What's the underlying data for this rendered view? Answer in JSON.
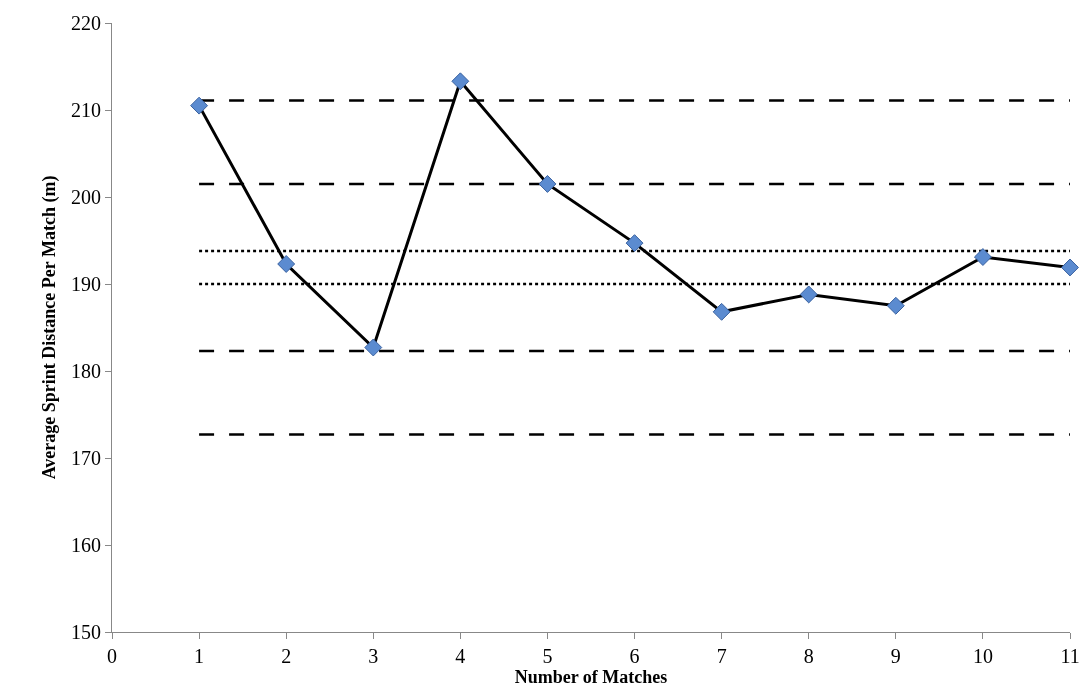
{
  "chart_data": {
    "type": "line",
    "xlabel": "Number of Matches",
    "ylabel": "Average Sprint Distance Per Match (m)",
    "x": [
      1,
      2,
      3,
      4,
      5,
      6,
      7,
      8,
      9,
      10,
      11
    ],
    "series": [
      {
        "color": "#000000",
        "values": [
          210.5,
          192.3,
          182.7,
          213.3,
          201.5,
          194.7,
          186.8,
          188.8,
          187.5,
          193.1,
          191.9
        ]
      }
    ],
    "xlim": [
      0,
      11
    ],
    "xticks": [
      0,
      1,
      2,
      3,
      4,
      5,
      6,
      7,
      8,
      9,
      10,
      11
    ],
    "ylim": [
      150,
      220
    ],
    "yticks": [
      150,
      160,
      170,
      180,
      190,
      200,
      210,
      220
    ],
    "ref_lines": [
      {
        "axis": "y",
        "value": 211.1,
        "color": "#000000",
        "line_style": "dashed"
      },
      {
        "axis": "y",
        "value": 201.5,
        "color": "#000000",
        "line_style": "dashed"
      },
      {
        "axis": "y",
        "value": 193.8,
        "color": "#000000",
        "line_style": "dotted"
      },
      {
        "axis": "y",
        "value": 190.0,
        "color": "#000000",
        "line_style": "dotted"
      },
      {
        "axis": "y",
        "value": 182.3,
        "color": "#000000",
        "line_style": "dashed"
      },
      {
        "axis": "y",
        "value": 172.7,
        "color": "#000000",
        "line_style": "dashed"
      }
    ],
    "marker": "diamond",
    "line_style": "solid",
    "grid": false
  }
}
